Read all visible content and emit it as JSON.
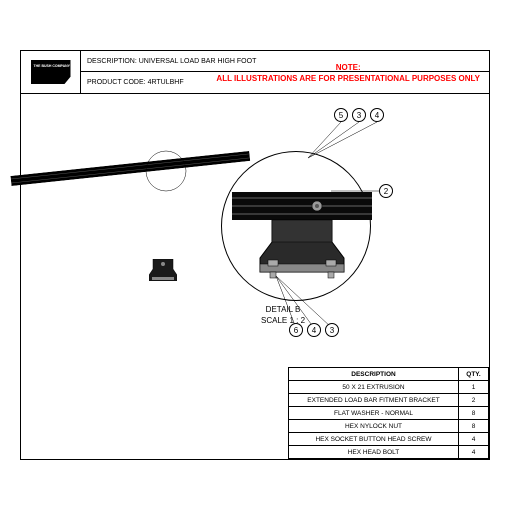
{
  "header": {
    "logo_title": "THE BUSH COMPANY",
    "logo_subtitle": "Designed & Engineered",
    "description_label": "DESCRIPTION:",
    "description_value": "UNIVERSAL LOAD BAR HIGH FOOT",
    "code_label": "PRODUCT CODE:",
    "code_value": "4RTULBHF"
  },
  "note": {
    "line1": "NOTE:",
    "line2": "ALL ILLUSTRATIONS ARE FOR PRESENTATIONAL PURPOSES ONLY"
  },
  "detail": {
    "title": "DETAIL B",
    "scale": "SCALE 1 : 2"
  },
  "callouts": {
    "top": [
      "5",
      "3",
      "4"
    ],
    "right": [
      "2"
    ],
    "bottom": [
      "6",
      "4",
      "3"
    ]
  },
  "bom": {
    "headers": {
      "description": "DESCRIPTION",
      "qty": "QTY."
    },
    "rows": [
      {
        "description": "50 X 21 EXTRUSION",
        "qty": "1"
      },
      {
        "description": "EXTENDED LOAD BAR FITMENT BRACKET",
        "qty": "2"
      },
      {
        "description": "FLAT WASHER - NORMAL",
        "qty": "8"
      },
      {
        "description": "HEX NYLOCK NUT",
        "qty": "8"
      },
      {
        "description": "HEX SOCKET BUTTON HEAD SCREW",
        "qty": "4"
      },
      {
        "description": "HEX HEAD BOLT",
        "qty": "4"
      }
    ]
  },
  "colors": {
    "stroke": "#000000",
    "fill_dark": "#1a1a1a",
    "fill_grey": "#666666",
    "note_color": "#ff0000",
    "background": "#ffffff"
  }
}
